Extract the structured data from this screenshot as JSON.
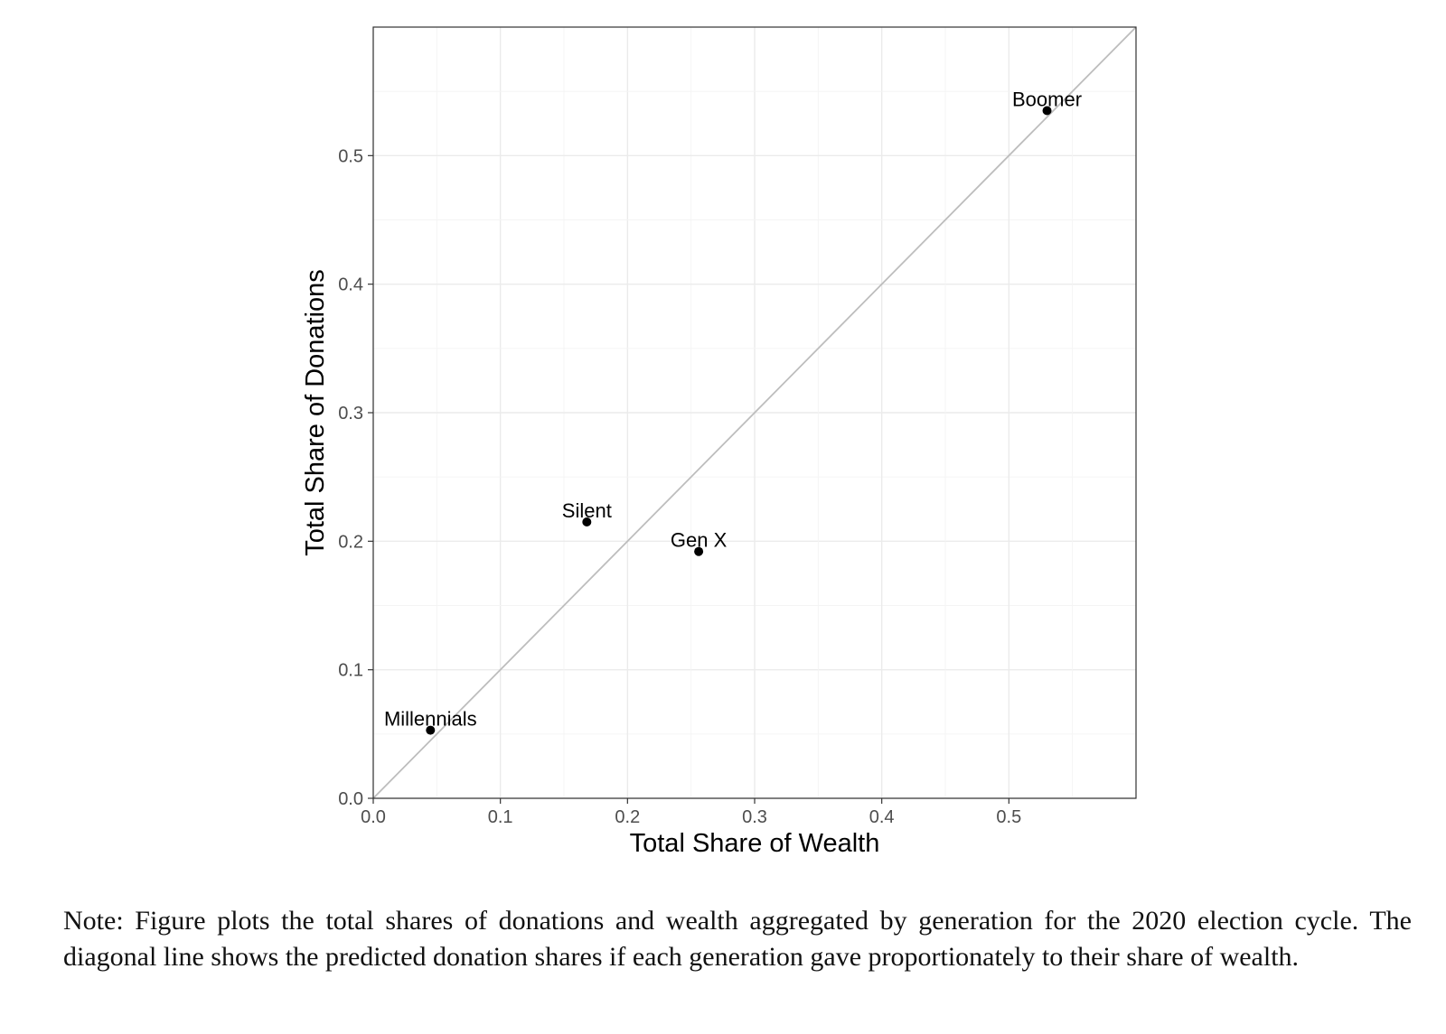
{
  "chart_data": {
    "type": "scatter",
    "xlabel": "Total Share of Wealth",
    "ylabel": "Total Share of Donations",
    "xlim": [
      0.0,
      0.6
    ],
    "ylim": [
      0.0,
      0.6
    ],
    "x_ticks": [
      "0.0",
      "0.1",
      "0.2",
      "0.3",
      "0.4",
      "0.5"
    ],
    "y_ticks": [
      "0.0",
      "0.1",
      "0.2",
      "0.3",
      "0.4",
      "0.5"
    ],
    "grid": true,
    "reference_line": "y = x diagonal",
    "points": [
      {
        "label": "Boomer",
        "x": 0.53,
        "y": 0.535
      },
      {
        "label": "Silent",
        "x": 0.168,
        "y": 0.215
      },
      {
        "label": "Gen X",
        "x": 0.256,
        "y": 0.192
      },
      {
        "label": "Millennials",
        "x": 0.045,
        "y": 0.053
      }
    ],
    "colors": {
      "points": "#000000",
      "diagonal": "#bdbdbd",
      "grid_major": "#ebebeb",
      "grid_minor": "#f4f4f4",
      "border": "#333333"
    }
  },
  "note": "Note: Figure plots the total shares of donations and wealth aggregated by generation for the 2020 election cycle. The diagonal line shows the predicted donation shares if each generation gave proportionately to their share of wealth."
}
